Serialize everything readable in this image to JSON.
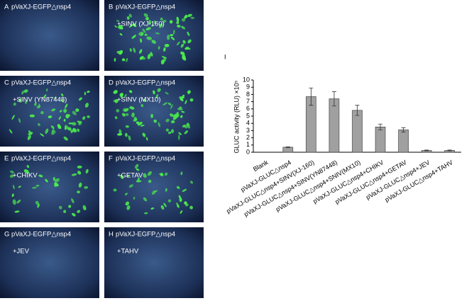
{
  "panels": [
    {
      "id": "A",
      "lines": [
        "pVaXJ-EGFP△nsp4"
      ]
    },
    {
      "id": "B",
      "lines": [
        "pVaXJ-EGFP△nsp4",
        "+SINV (XJ-160)"
      ]
    },
    {
      "id": "C",
      "lines": [
        "pVaXJ-EGFP△nsp4",
        "+SINV (YN87448)"
      ]
    },
    {
      "id": "D",
      "lines": [
        "pVaXJ-EGFP△nsp4",
        "+SINV (MX10)"
      ]
    },
    {
      "id": "E",
      "lines": [
        "pVaXJ-EGFP△nsp4",
        "+CHIKV"
      ]
    },
    {
      "id": "F",
      "lines": [
        "pVaXJ-EGFP△nsp4",
        "+GETAV"
      ]
    },
    {
      "id": "G",
      "lines": [
        "pVaXJ-EGFP△nsp4",
        "+JEV"
      ]
    },
    {
      "id": "H",
      "lines": [
        "pVaXJ-EGFP△nsp4",
        "+TAHV"
      ]
    }
  ],
  "chart_data": {
    "type": "bar",
    "panel_label": "I",
    "ylabel": "GLUC activity (RLU) ×10⁵",
    "categories": [
      "Blank",
      "pVaXJ-GLUC△nsp4",
      "pVaXJ-GLUC△nsp4+SINV(XJ-160)",
      "pVaXJ-GLUC△nsp4+SINV(YN87448)",
      "pVaXJ-GLUC△nsp4+SNIV(MX10)",
      "pVaXJ-GLUC△nsp4+CHIKV",
      "pVaXJ-GLUC△nsp4+GETAV",
      "pVaXJ-GLUC△nsp4+JEV",
      "pVaXJ-GLUC△nsp4+TAHV"
    ],
    "values": [
      0,
      0.7,
      7.7,
      7.4,
      5.8,
      3.5,
      3.1,
      0.25,
      0.25
    ],
    "errors": [
      0,
      0.05,
      1.2,
      1.0,
      0.7,
      0.4,
      0.3,
      0.05,
      0.05
    ],
    "color": "#a0a0a0",
    "ylim": [
      0,
      10
    ],
    "yticks": [
      0,
      1,
      2,
      3,
      4,
      5,
      6,
      7,
      8,
      9,
      10
    ]
  }
}
